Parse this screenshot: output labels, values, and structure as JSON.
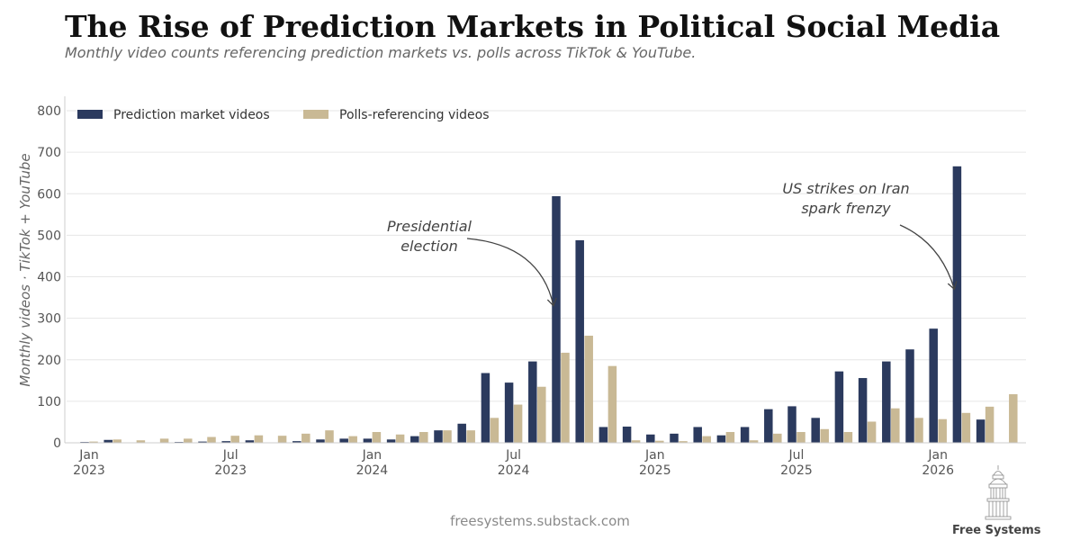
{
  "header": {
    "title": "The Rise of Prediction Markets in Political Social Media",
    "subtitle": "Monthly video counts referencing prediction markets vs. polls across TikTok & YouTube."
  },
  "footer": {
    "source": "freesystems.substack.com",
    "brand": "Free Systems"
  },
  "colors": {
    "prediction": "#2b3a5e",
    "polls": "#c9b995",
    "grid": "#e6e6e6",
    "annotation": "#444444"
  },
  "chart_data": {
    "type": "bar",
    "title": "The Rise of Prediction Markets in Political Social Media",
    "ylabel": "Monthly videos · TikTok + YouTube",
    "xlabel": "",
    "ylim": [
      0,
      800
    ],
    "yticks": [
      0,
      100,
      200,
      300,
      400,
      500,
      600,
      700,
      800
    ],
    "grid": true,
    "legend_position": "top-left",
    "categories": [
      "2023-01",
      "2023-02",
      "2023-03",
      "2023-04",
      "2023-05",
      "2023-06",
      "2023-07",
      "2023-08",
      "2023-09",
      "2023-10",
      "2023-11",
      "2023-12",
      "2024-01",
      "2024-02",
      "2024-03",
      "2024-04",
      "2024-05",
      "2024-06",
      "2024-07",
      "2024-08",
      "2024-09",
      "2024-10",
      "2024-11",
      "2024-12",
      "2025-01",
      "2025-02",
      "2025-03",
      "2025-04",
      "2025-05",
      "2025-06",
      "2025-07",
      "2025-08",
      "2025-09",
      "2025-10",
      "2025-11",
      "2025-12",
      "2026-01",
      "2026-02",
      "2026-03",
      "2026-04"
    ],
    "series": [
      {
        "name": "Prediction market videos",
        "values": [
          2,
          7,
          0,
          0,
          2,
          3,
          4,
          6,
          0,
          4,
          8,
          10,
          10,
          8,
          16,
          30,
          46,
          168,
          145,
          196,
          594,
          488,
          38,
          39,
          20,
          22,
          38,
          18,
          38,
          81,
          88,
          60,
          172,
          156,
          196,
          225,
          275,
          666,
          56,
          0
        ]
      },
      {
        "name": "Polls-referencing videos",
        "values": [
          3,
          8,
          6,
          10,
          10,
          14,
          17,
          18,
          17,
          22,
          30,
          16,
          26,
          20,
          26,
          30,
          30,
          60,
          92,
          135,
          217,
          258,
          185,
          6,
          5,
          4,
          16,
          26,
          6,
          22,
          26,
          33,
          26,
          51,
          83,
          60,
          57,
          72,
          87,
          117
        ]
      }
    ],
    "xticks": [
      {
        "index": 0,
        "line1": "Jan",
        "line2": "2023"
      },
      {
        "index": 6,
        "line1": "Jul",
        "line2": "2023"
      },
      {
        "index": 12,
        "line1": "Jan",
        "line2": "2024"
      },
      {
        "index": 18,
        "line1": "Jul",
        "line2": "2024"
      },
      {
        "index": 24,
        "line1": "Jan",
        "line2": "2025"
      },
      {
        "index": 30,
        "line1": "Jul",
        "line2": "2025"
      },
      {
        "index": 36,
        "line1": "Jan",
        "line2": "2026"
      }
    ],
    "annotations": [
      {
        "lines": [
          "Presidential",
          "election"
        ],
        "target_index": 20,
        "target_value": 330
      },
      {
        "lines": [
          "US strikes on Iran",
          "spark frenzy"
        ],
        "target_index": 37,
        "target_value": 370
      }
    ]
  }
}
